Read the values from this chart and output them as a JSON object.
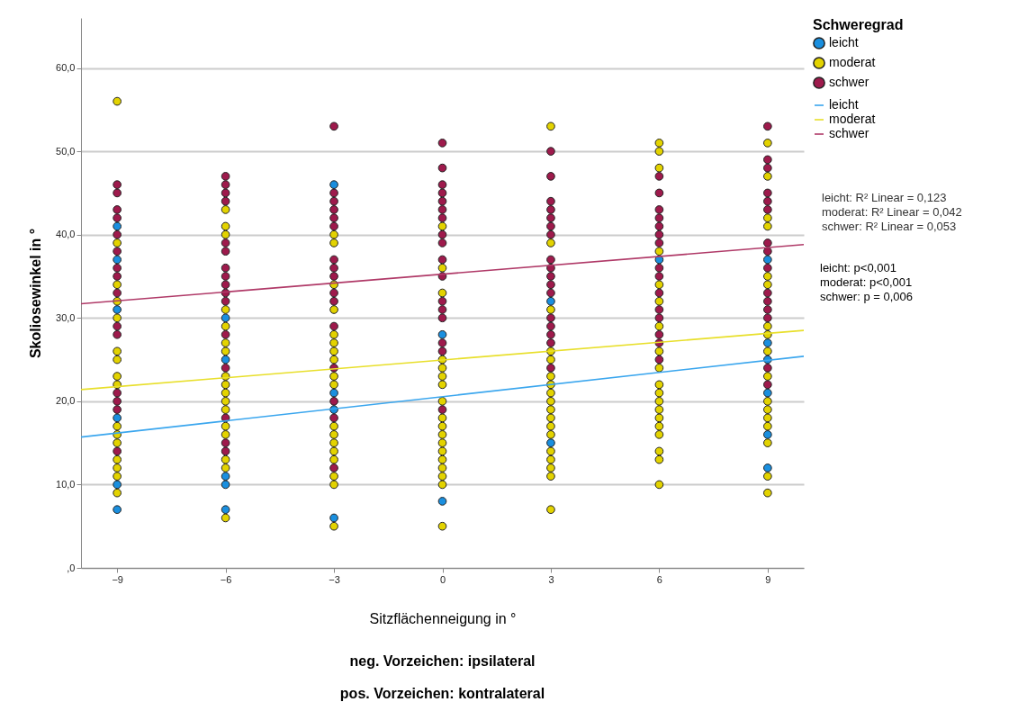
{
  "chart_data": {
    "type": "scatter",
    "xlabel": "Sitzflächenneigung in °",
    "ylabel": "Skoliosewinkel in °",
    "legend_title": "Schweregrad",
    "xlim": [
      -10,
      10
    ],
    "xticks": [
      -9,
      -6,
      -3,
      0,
      3,
      6,
      9
    ],
    "ylim": [
      0,
      66
    ],
    "yticks": [
      {
        "value": 0,
        "label": ",0"
      },
      {
        "value": 10,
        "label": "10,0"
      },
      {
        "value": 20,
        "label": "20,0"
      },
      {
        "value": 30,
        "label": "30,0"
      },
      {
        "value": 40,
        "label": "40,0"
      },
      {
        "value": 50,
        "label": "50,0"
      },
      {
        "value": 60,
        "label": "60,0"
      }
    ],
    "grid": "y",
    "legend": "right",
    "marker": "circle",
    "series": [
      {
        "name": "leicht",
        "color": "#1a8fdf",
        "x": [
          -9,
          -9,
          -9,
          -9,
          -9,
          -9,
          -6,
          -6,
          -6,
          -6,
          -6,
          -3,
          -3,
          -3,
          -3,
          0,
          0,
          3,
          3,
          6,
          9,
          9,
          9,
          9,
          9,
          9
        ],
        "values": [
          41,
          37,
          31,
          18,
          10,
          7,
          30,
          25,
          11,
          10,
          7,
          46,
          21,
          19,
          6,
          28,
          8,
          32,
          15,
          37,
          37,
          27,
          25,
          21,
          16,
          12
        ]
      },
      {
        "name": "moderat",
        "color": "#e3d300",
        "x": [
          -9,
          -9,
          -9,
          -9,
          -9,
          -9,
          -9,
          -9,
          -9,
          -9,
          -9,
          -9,
          -9,
          -9,
          -9,
          -9,
          -6,
          -6,
          -6,
          -6,
          -6,
          -6,
          -6,
          -6,
          -6,
          -6,
          -6,
          -6,
          -6,
          -6,
          -6,
          -6,
          -6,
          -3,
          -3,
          -3,
          -3,
          -3,
          -3,
          -3,
          -3,
          -3,
          -3,
          -3,
          -3,
          -3,
          -3,
          -3,
          -3,
          -3,
          -3,
          0,
          0,
          0,
          0,
          0,
          0,
          0,
          0,
          0,
          0,
          0,
          0,
          0,
          0,
          0,
          0,
          0,
          0,
          3,
          3,
          3,
          3,
          3,
          3,
          3,
          3,
          3,
          3,
          3,
          3,
          3,
          3,
          3,
          3,
          3,
          3,
          6,
          6,
          6,
          6,
          6,
          6,
          6,
          6,
          6,
          6,
          6,
          6,
          6,
          6,
          6,
          6,
          6,
          6,
          6,
          9,
          9,
          9,
          9,
          9,
          9,
          9,
          9,
          9,
          9,
          9,
          9,
          9,
          9,
          9,
          9,
          9
        ],
        "values": [
          56,
          39,
          34,
          32,
          30,
          26,
          25,
          23,
          22,
          17,
          16,
          15,
          13,
          12,
          11,
          9,
          43,
          41,
          40,
          31,
          29,
          27,
          26,
          23,
          22,
          21,
          20,
          19,
          17,
          16,
          13,
          12,
          6,
          40,
          39,
          34,
          31,
          28,
          27,
          26,
          25,
          23,
          22,
          17,
          16,
          15,
          14,
          13,
          11,
          10,
          5,
          41,
          36,
          33,
          25,
          24,
          23,
          22,
          20,
          18,
          17,
          16,
          15,
          14,
          13,
          12,
          11,
          10,
          5,
          53,
          39,
          31,
          26,
          25,
          23,
          22,
          21,
          20,
          19,
          18,
          17,
          16,
          14,
          13,
          12,
          11,
          7,
          51,
          50,
          48,
          38,
          34,
          32,
          29,
          26,
          24,
          22,
          21,
          20,
          19,
          18,
          17,
          16,
          14,
          13,
          10,
          51,
          47,
          42,
          41,
          35,
          34,
          29,
          28,
          26,
          23,
          20,
          19,
          18,
          17,
          15,
          11,
          9
        ]
      },
      {
        "name": "schwer",
        "color": "#9e1a4c",
        "x": [
          -9,
          -9,
          -9,
          -9,
          -9,
          -9,
          -9,
          -9,
          -9,
          -9,
          -9,
          -9,
          -9,
          -9,
          -9,
          -6,
          -6,
          -6,
          -6,
          -6,
          -6,
          -6,
          -6,
          -6,
          -6,
          -6,
          -6,
          -6,
          -6,
          -6,
          -6,
          -3,
          -3,
          -3,
          -3,
          -3,
          -3,
          -3,
          -3,
          -3,
          -3,
          -3,
          -3,
          -3,
          -3,
          -3,
          -3,
          0,
          0,
          0,
          0,
          0,
          0,
          0,
          0,
          0,
          0,
          0,
          0,
          0,
          0,
          0,
          0,
          0,
          3,
          3,
          3,
          3,
          3,
          3,
          3,
          3,
          3,
          3,
          3,
          3,
          3,
          3,
          3,
          3,
          3,
          6,
          6,
          6,
          6,
          6,
          6,
          6,
          6,
          6,
          6,
          6,
          6,
          6,
          6,
          6,
          9,
          9,
          9,
          9,
          9,
          9,
          9,
          9,
          9,
          9,
          9,
          9,
          9,
          9,
          9
        ],
        "values": [
          46,
          45,
          43,
          42,
          40,
          38,
          36,
          35,
          33,
          29,
          28,
          21,
          20,
          19,
          14,
          47,
          46,
          45,
          44,
          39,
          38,
          36,
          35,
          34,
          33,
          32,
          28,
          24,
          18,
          15,
          14,
          53,
          45,
          44,
          43,
          42,
          41,
          37,
          36,
          35,
          33,
          32,
          29,
          24,
          20,
          18,
          12,
          51,
          48,
          46,
          45,
          44,
          43,
          42,
          40,
          39,
          37,
          35,
          32,
          31,
          30,
          27,
          26,
          19,
          50,
          47,
          44,
          43,
          42,
          41,
          40,
          37,
          36,
          35,
          34,
          33,
          30,
          29,
          28,
          27,
          24,
          47,
          45,
          43,
          42,
          41,
          40,
          39,
          36,
          35,
          33,
          31,
          30,
          28,
          27,
          25,
          53,
          49,
          48,
          45,
          44,
          43,
          39,
          38,
          36,
          33,
          32,
          31,
          30,
          24,
          22
        ]
      },
      {
        "name": "leicht",
        "type": "line",
        "marker": "none",
        "color": "#3aa6ee",
        "x": [
          -10,
          10
        ],
        "values": [
          15.7,
          25.4
        ]
      },
      {
        "name": "moderat",
        "type": "line",
        "marker": "none",
        "color": "#e8df2a",
        "x": [
          -10,
          10
        ],
        "values": [
          21.4,
          28.5
        ]
      },
      {
        "name": "schwer",
        "type": "line",
        "marker": "none",
        "color": "#b03a68",
        "x": [
          -10,
          10
        ],
        "values": [
          31.7,
          38.8
        ]
      }
    ],
    "annotations": [
      "leicht: R² Linear = 0,123",
      "moderat: R² Linear = 0,042",
      "schwer: R² Linear = 0,053",
      "leicht: p<0,001",
      "moderat: p<0,001",
      "schwer: p = 0,006",
      "neg. Vorzeichen: ipsilateral",
      "pos. Vorzeichen: kontralateral"
    ]
  }
}
